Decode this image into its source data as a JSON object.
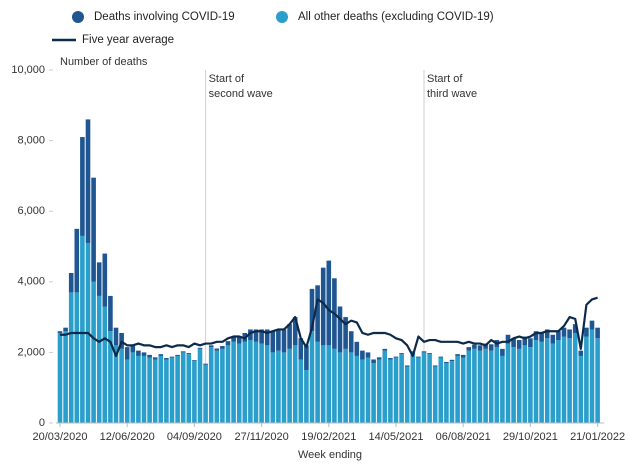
{
  "chart_data": {
    "type": "bar",
    "stacked": true,
    "y_label": "Number of deaths",
    "x_label": "Week ending",
    "categories": [
      "20/03/2020",
      null,
      null,
      null,
      null,
      null,
      null,
      null,
      null,
      null,
      null,
      null,
      "12/06/2020",
      null,
      null,
      null,
      null,
      null,
      null,
      null,
      null,
      null,
      null,
      null,
      "04/09/2020",
      null,
      null,
      null,
      null,
      null,
      null,
      null,
      null,
      null,
      null,
      null,
      "27/11/2020",
      null,
      null,
      null,
      null,
      null,
      null,
      null,
      null,
      null,
      null,
      null,
      "19/02/2021",
      null,
      null,
      null,
      null,
      null,
      null,
      null,
      null,
      null,
      null,
      null,
      "14/05/2021",
      null,
      null,
      null,
      null,
      null,
      null,
      null,
      null,
      null,
      null,
      null,
      "06/08/2021",
      null,
      null,
      null,
      null,
      null,
      null,
      null,
      null,
      null,
      null,
      null,
      "29/10/2021",
      null,
      null,
      null,
      null,
      null,
      null,
      null,
      null,
      null,
      null,
      null,
      "21/01/2022"
    ],
    "series": [
      {
        "name": "All other deaths (excluding COVID-19)",
        "color": "#2a9fcb",
        "type": "bar",
        "values": [
          2550,
          2600,
          3700,
          3700,
          5300,
          5100,
          4000,
          3600,
          3300,
          2600,
          2200,
          2100,
          1800,
          2000,
          1900,
          1900,
          1850,
          1800,
          1900,
          1800,
          1850,
          1900,
          2000,
          1950,
          1750,
          2100,
          1650,
          2150,
          2050,
          2100,
          2200,
          2300,
          2250,
          2300,
          2350,
          2300,
          2250,
          2200,
          2000,
          2050,
          2000,
          2100,
          2200,
          1800,
          1500,
          2600,
          2300,
          2200,
          2200,
          2100,
          2000,
          2100,
          2000,
          1900,
          1800,
          1850,
          1700,
          1800,
          2050,
          1800,
          1850,
          1950,
          1600,
          2000,
          1850,
          2000,
          1950,
          1600,
          1850,
          1700,
          1750,
          1900,
          1850,
          2050,
          2100,
          2050,
          2100,
          2050,
          2150,
          1900,
          2250,
          2150,
          2100,
          2200,
          2150,
          2350,
          2300,
          2400,
          2250,
          2350,
          2450,
          2400,
          2550,
          1900,
          2450,
          2650,
          2400
        ]
      },
      {
        "name": "Deaths involving COVID-19",
        "color": "#1f5591",
        "type": "bar",
        "values": [
          50,
          100,
          550,
          1800,
          2800,
          3500,
          2950,
          950,
          1500,
          1000,
          500,
          450,
          350,
          200,
          150,
          100,
          80,
          60,
          50,
          40,
          30,
          30,
          30,
          30,
          30,
          30,
          30,
          50,
          60,
          80,
          120,
          150,
          200,
          250,
          300,
          350,
          400,
          450,
          600,
          600,
          650,
          700,
          800,
          600,
          700,
          1200,
          1600,
          2200,
          2400,
          2000,
          1300,
          900,
          600,
          400,
          250,
          150,
          100,
          60,
          50,
          40,
          30,
          30,
          30,
          30,
          30,
          30,
          30,
          30,
          30,
          30,
          40,
          50,
          80,
          100,
          120,
          150,
          150,
          180,
          200,
          200,
          250,
          250,
          250,
          250,
          250,
          250,
          250,
          250,
          250,
          250,
          250,
          250,
          250,
          150,
          250,
          250,
          300
        ]
      },
      {
        "name": "Five year average",
        "color": "#0c2b4b",
        "type": "line",
        "values": [
          2500,
          2500,
          2550,
          2550,
          2550,
          2550,
          2400,
          2300,
          2400,
          2300,
          1900,
          2300,
          2200,
          2200,
          2250,
          2200,
          2200,
          2150,
          2150,
          2200,
          2150,
          2200,
          2200,
          2150,
          2250,
          2200,
          2250,
          2250,
          2300,
          2300,
          2400,
          2450,
          2450,
          2400,
          2550,
          2600,
          2600,
          2550,
          2600,
          2650,
          2650,
          2800,
          3000,
          2400,
          2150,
          2700,
          3500,
          3400,
          3200,
          3100,
          2950,
          2800,
          2900,
          2850,
          2550,
          2500,
          2550,
          2550,
          2550,
          2500,
          2400,
          2350,
          2200,
          1900,
          2450,
          2300,
          2350,
          2350,
          2300,
          2300,
          2300,
          2300,
          2250,
          2300,
          2250,
          2250,
          2200,
          2350,
          2250,
          2300,
          2300,
          2400,
          2450,
          2400,
          2450,
          2550,
          2550,
          2600,
          2600,
          2600,
          2750,
          3000,
          2950,
          2100,
          3350,
          3500,
          3550
        ]
      }
    ],
    "ylim": [
      0,
      10000
    ],
    "yticks": [
      0,
      {
        "value": 2000,
        "label": "2,000"
      },
      {
        "value": 4000,
        "label": "4,000"
      },
      {
        "value": 6000,
        "label": "6,000"
      },
      {
        "value": 8000,
        "label": "8,000"
      },
      {
        "value": 10000,
        "label": "10,000"
      }
    ],
    "grid": false,
    "annotations": [
      {
        "lines": [
          "Start of",
          "second wave"
        ],
        "at": 26
      },
      {
        "lines": [
          "Start of",
          "third wave"
        ],
        "at": 65
      }
    ]
  }
}
